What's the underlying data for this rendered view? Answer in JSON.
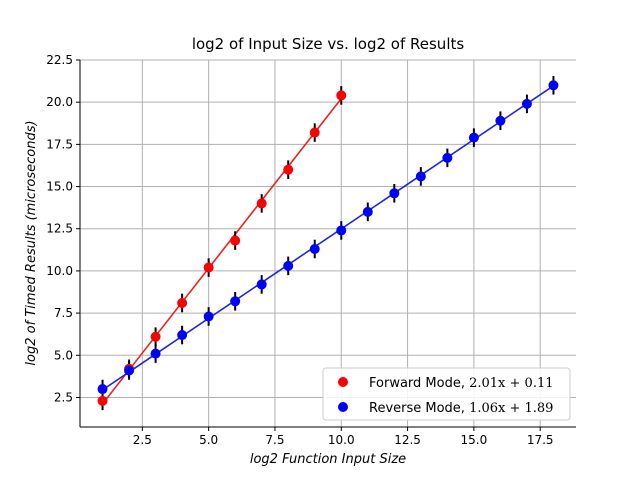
{
  "chart_data": {
    "type": "scatter",
    "title": "log2 of Input Size vs. log2 of Results",
    "xlabel": "log2 Function Input Size",
    "ylabel": "log2 of Timed Results (microseconds)",
    "xlim": [
      0.15,
      18.85
    ],
    "ylim": [
      0.75,
      22.5
    ],
    "xticks": [
      2.5,
      5.0,
      7.5,
      10.0,
      12.5,
      15.0,
      17.5
    ],
    "xtick_labels": [
      "2.5",
      "5.0",
      "7.5",
      "10.0",
      "12.5",
      "15.0",
      "17.5"
    ],
    "yticks": [
      2.5,
      5.0,
      7.5,
      10.0,
      12.5,
      15.0,
      17.5,
      20.0,
      22.5
    ],
    "ytick_labels": [
      "2.5",
      "5.0",
      "7.5",
      "10.0",
      "12.5",
      "15.0",
      "17.5",
      "20.0",
      "22.5"
    ],
    "grid": true,
    "legend_position": "bottom-right",
    "series": [
      {
        "name": "Forward Mode, 2.01x + 0.11",
        "legend_prefix": "Forward Mode, ",
        "legend_formula": "2.01x + 0.11",
        "color": "#ff0000",
        "fit_color": "#e8231f",
        "fit": {
          "slope": 2.01,
          "intercept": 0.11
        },
        "x": [
          1,
          2,
          3,
          4,
          5,
          6,
          7,
          8,
          9,
          10
        ],
        "y": [
          2.3,
          4.2,
          6.1,
          8.1,
          10.2,
          11.8,
          14.0,
          16.0,
          18.2,
          20.4
        ],
        "yerr": [
          0.55,
          0.55,
          0.55,
          0.55,
          0.55,
          0.55,
          0.55,
          0.55,
          0.55,
          0.55
        ]
      },
      {
        "name": "Reverse Mode, 1.06x + 1.89",
        "legend_prefix": "Reverse Mode, ",
        "legend_formula": "1.06x + 1.89",
        "color": "#0000ff",
        "fit_color": "#2222ee",
        "fit": {
          "slope": 1.06,
          "intercept": 1.89
        },
        "x": [
          1,
          2,
          3,
          4,
          5,
          6,
          7,
          8,
          9,
          10,
          11,
          12,
          13,
          14,
          15,
          16,
          17,
          18
        ],
        "y": [
          3.0,
          4.1,
          5.1,
          6.2,
          7.3,
          8.2,
          9.2,
          10.3,
          11.3,
          12.4,
          13.5,
          14.6,
          15.6,
          16.7,
          17.9,
          18.9,
          19.9,
          21.0
        ],
        "yerr": [
          0.55,
          0.55,
          0.55,
          0.55,
          0.55,
          0.55,
          0.55,
          0.55,
          0.55,
          0.55,
          0.55,
          0.55,
          0.55,
          0.55,
          0.55,
          0.55,
          0.55,
          0.55
        ]
      }
    ]
  }
}
